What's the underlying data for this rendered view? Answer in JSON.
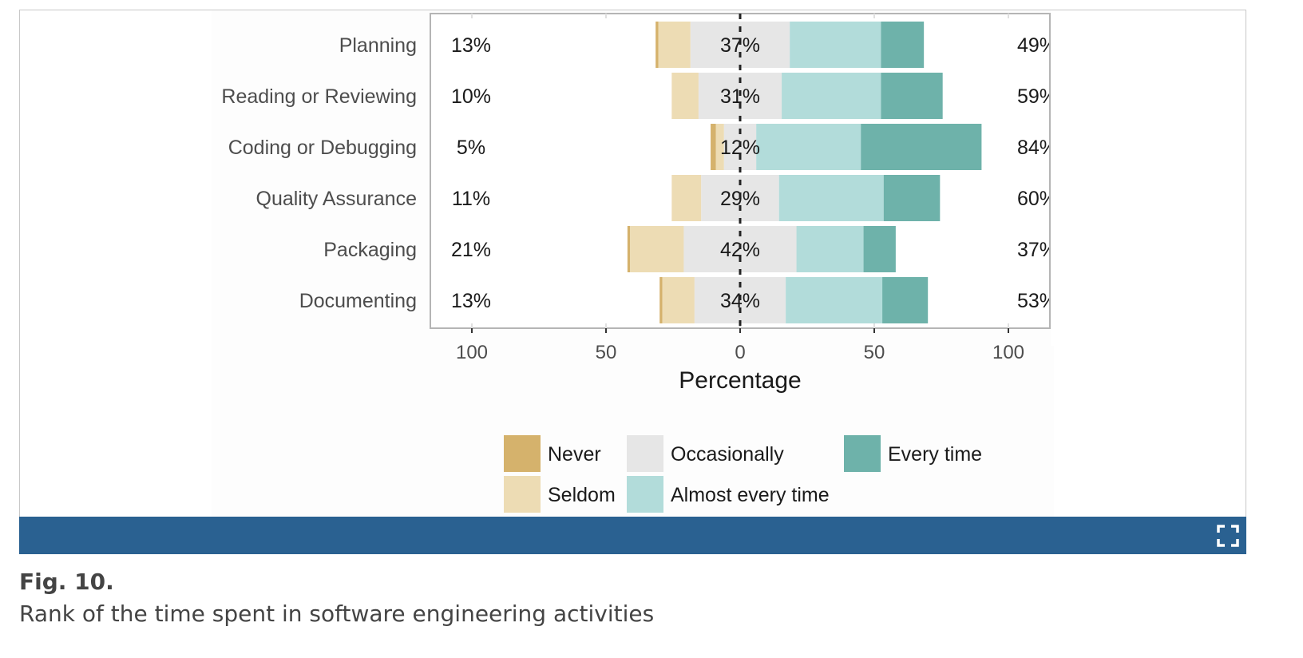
{
  "figure": {
    "label": "Fig. 10.",
    "caption": "Rank of the time spent in software engineering activities",
    "expand_icon": "expand-icon",
    "bar_color": "#2a6191"
  },
  "chart_data": {
    "type": "bar",
    "orientation": "horizontal",
    "stacking": "diverging",
    "categories": [
      "Planning",
      "Reading or Reviewing",
      "Coding or Debugging",
      "Quality Assurance",
      "Packaging",
      "Documenting"
    ],
    "series": [
      {
        "name": "Never",
        "color": "#d5b26c",
        "values": [
          1,
          0,
          2,
          0,
          1,
          1
        ]
      },
      {
        "name": "Seldom",
        "color": "#eddcb4",
        "values": [
          12,
          10,
          3,
          11,
          20,
          12
        ]
      },
      {
        "name": "Occasionally",
        "color": "#e6e6e6",
        "values": [
          37,
          31,
          12,
          29,
          42,
          34
        ]
      },
      {
        "name": "Almost every time",
        "color": "#b2dcda",
        "values": [
          34,
          37,
          39,
          39,
          25,
          36
        ]
      },
      {
        "name": "Every time",
        "color": "#6eb2aa",
        "values": [
          16,
          23,
          45,
          21,
          12,
          17
        ]
      }
    ],
    "left_labels": [
      "13%",
      "10%",
      "5%",
      "11%",
      "21%",
      "13%"
    ],
    "center_labels": [
      "37%",
      "31%",
      "12%",
      "29%",
      "42%",
      "34%"
    ],
    "right_labels": [
      "49%",
      "59%",
      "84%",
      "60%",
      "37%",
      "53%"
    ],
    "x_ticks": [
      "100",
      "50",
      "0",
      "50",
      "100"
    ],
    "xlim": [
      -100,
      100
    ],
    "xlabel": "Percentage",
    "legend": {
      "position": "bottom",
      "rows": [
        [
          "Never",
          "Occasionally",
          "Every time"
        ],
        [
          "Seldom",
          "Almost every time"
        ]
      ]
    },
    "grid": true
  }
}
